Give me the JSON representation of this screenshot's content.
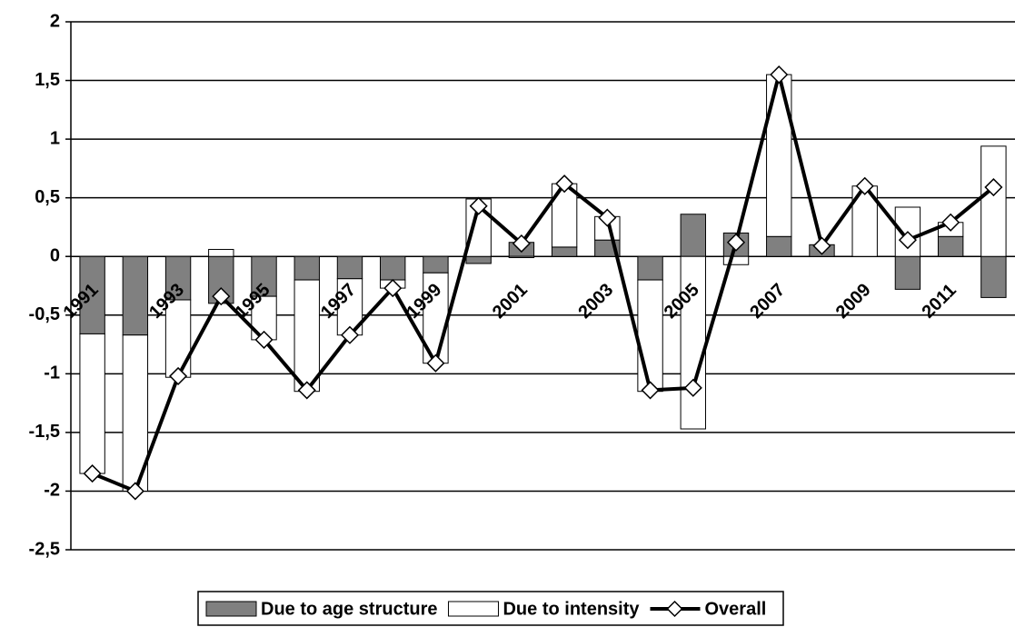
{
  "chart_data": {
    "type": "bar",
    "stacked": true,
    "categories": [
      "1991",
      null,
      "1993",
      null,
      "1995",
      null,
      "1997",
      null,
      "1999",
      null,
      "2001",
      null,
      "2003",
      null,
      "2005",
      null,
      "2007",
      null,
      "2009",
      null,
      "2011",
      null
    ],
    "series": [
      {
        "name": "Due to age structure",
        "type": "bar",
        "color": "#808080",
        "values": [
          -0.66,
          -0.67,
          -0.37,
          -0.4,
          -0.34,
          -0.2,
          -0.19,
          -0.2,
          -0.14,
          -0.06,
          0.12,
          0.08,
          0.14,
          -0.2,
          0.36,
          0.2,
          0.17,
          0.1,
          0.0,
          -0.28,
          0.17,
          -0.35
        ]
      },
      {
        "name": "Due to intensity",
        "type": "bar",
        "color": "#ffffff",
        "values": [
          -1.19,
          -1.33,
          -0.66,
          0.06,
          -0.37,
          -0.95,
          -0.48,
          -0.07,
          -0.77,
          0.49,
          -0.01,
          0.54,
          0.2,
          -0.95,
          -1.47,
          -0.07,
          1.38,
          0.0,
          0.6,
          0.42,
          0.12,
          0.94
        ]
      },
      {
        "name": "Overall",
        "type": "line",
        "color": "#000000",
        "values": [
          -1.85,
          -2.0,
          -1.02,
          -0.34,
          -0.71,
          -1.14,
          -0.67,
          -0.27,
          -0.91,
          0.43,
          0.11,
          0.62,
          0.33,
          -1.14,
          -1.12,
          0.12,
          1.55,
          0.09,
          0.6,
          0.14,
          0.29,
          0.59
        ]
      }
    ],
    "ylim": [
      -2.5,
      2
    ],
    "yticks": [
      {
        "value": -2.5,
        "label": "-2,5"
      },
      -2,
      {
        "value": -1.5,
        "label": "-1,5"
      },
      -1,
      {
        "value": -0.5,
        "label": "-0,5"
      },
      0,
      {
        "value": 0.5,
        "label": "0,5"
      },
      1,
      {
        "value": 1.5,
        "label": "1,5"
      },
      2
    ],
    "grid": true,
    "legend": "bottom"
  }
}
